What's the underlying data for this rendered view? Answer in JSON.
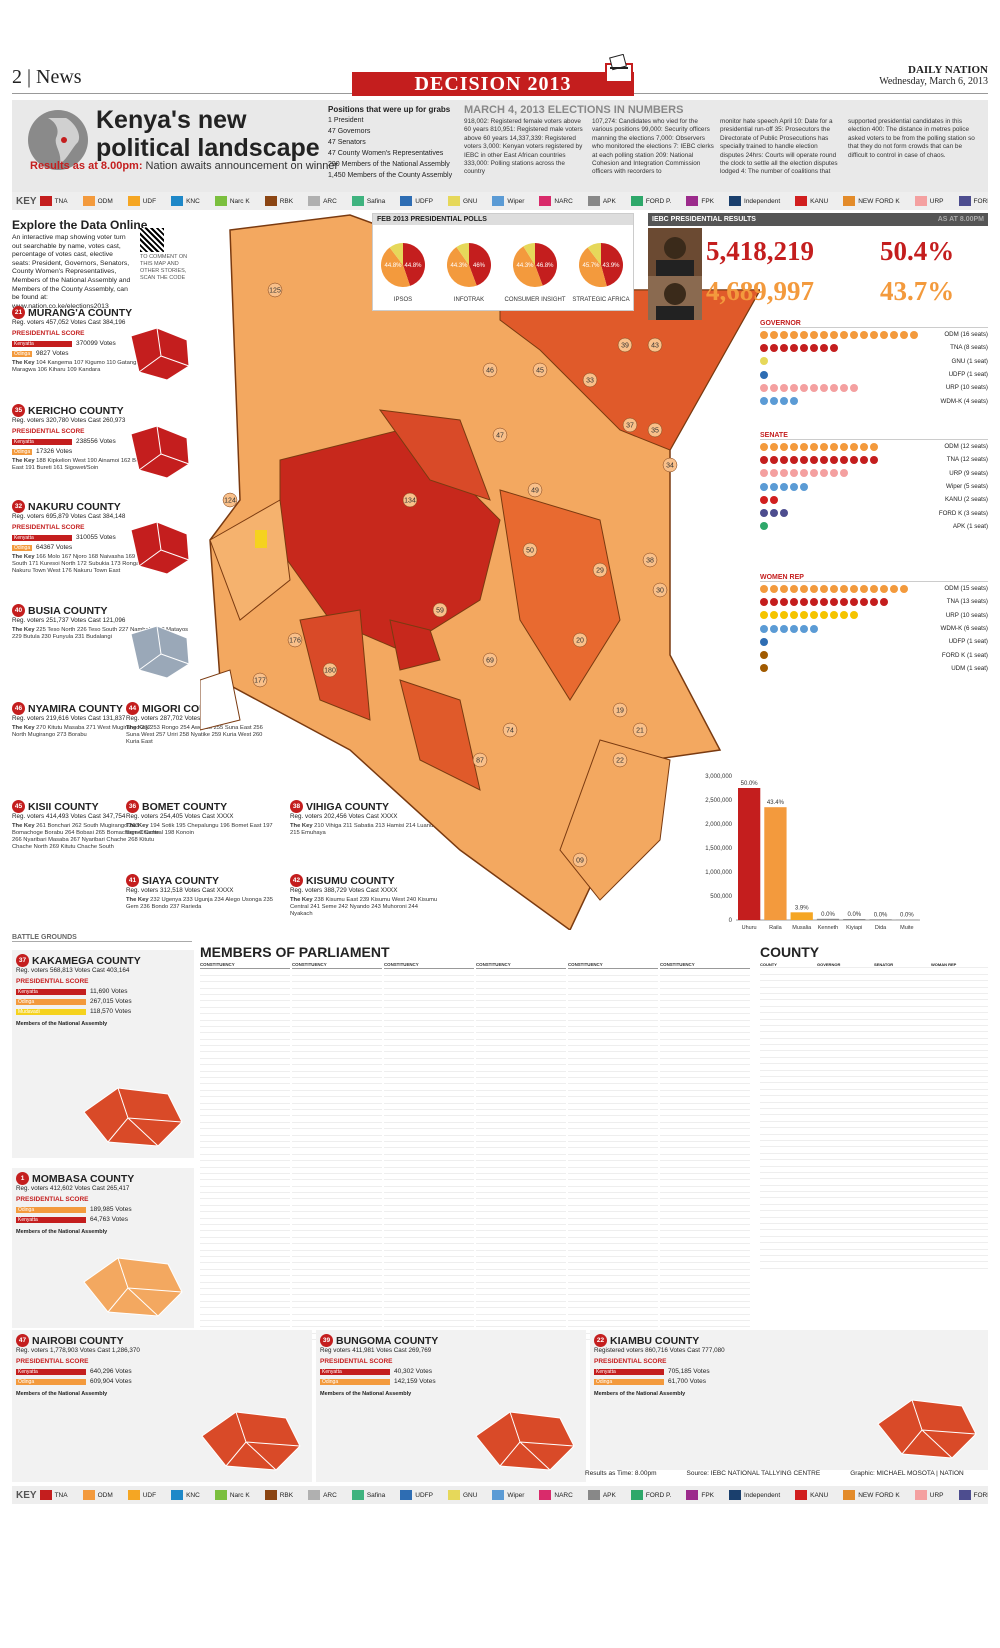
{
  "header": {
    "page": "2 | News",
    "banner": "DECISION 2013",
    "paper": "DAILY NATION",
    "date": "Wednesday, March 6, 2013"
  },
  "title": {
    "main": "Kenya's new political landscape",
    "results_lead": "Results as at 8.00pm:",
    "results_rest": " Nation awaits announcement on winner"
  },
  "positions": {
    "heading": "Positions that were up for grabs",
    "items": [
      "1 President",
      "47 Governors",
      "47 Senators",
      "47 County Women's Representatives",
      "290 Members of the National Assembly",
      "1,450 Members of the County Assembly"
    ]
  },
  "numbers": {
    "heading": "MARCH 4, 2013 ELECTIONS IN NUMBERS",
    "col1": "918,002: Registered female voters above 60 years 810,951: Registered male voters above 60 years 14,337,339: Registered voters 3,000: Kenyan voters registered by IEBC in other East African countries 333,000: Polling stations across the country",
    "col2": "107,274: Candidates who vied for the various positions 99,000: Security officers manning the elections 7,000: Observers who monitored the elections 7: IEBC clerks at each polling station 209: National Cohesion and Integration Commission officers with recorders to",
    "col3": "monitor hate speech April 10: Date for a presidential run-off 35: Prosecutors the Directorate of Public Prosecutions has specially trained to handle election disputes 24hrs: Courts will operate round the clock to settle all the election disputes lodged 4: The number of coalitions that",
    "col4": "supported presidential candidates in this election 400: The distance in metres police asked voters to be from the polling station so that they do not form crowds that can be difficult to control in case of chaos."
  },
  "key": {
    "label": "KEY",
    "parties": [
      {
        "name": "TNA",
        "color": "#c41e1e"
      },
      {
        "name": "ODM",
        "color": "#f39a3d"
      },
      {
        "name": "UDF",
        "color": "#f5a623"
      },
      {
        "name": "KNC",
        "color": "#1e88c8"
      },
      {
        "name": "Narc K",
        "color": "#7bbf3e"
      },
      {
        "name": "RBK",
        "color": "#8b4513"
      },
      {
        "name": "ARC",
        "color": "#b0b0b0"
      },
      {
        "name": "Safina",
        "color": "#3fb37f"
      },
      {
        "name": "UDFP",
        "color": "#2e6db3"
      },
      {
        "name": "GNU",
        "color": "#e6d85a"
      },
      {
        "name": "Wiper",
        "color": "#5b9bd5"
      },
      {
        "name": "NARC",
        "color": "#d92b6b"
      },
      {
        "name": "APK",
        "color": "#888888"
      },
      {
        "name": "FORD P.",
        "color": "#2ea86a"
      },
      {
        "name": "FPK",
        "color": "#9c2b8c"
      },
      {
        "name": "Independent",
        "color": "#1a3f6d"
      },
      {
        "name": "KANU",
        "color": "#d11f1f"
      },
      {
        "name": "NEW FORD K",
        "color": "#e38b2a"
      },
      {
        "name": "URP",
        "color": "#f4a0a0"
      },
      {
        "name": "FORD K",
        "color": "#4d4d8f"
      },
      {
        "name": "UDM",
        "color": "#a05a00"
      }
    ]
  },
  "explore": {
    "title": "Explore the Data Online",
    "text": "An interactive map showing voter turn out searchable by name, votes cast, percentage of votes cast, elective seats: President, Governors, Senators, County Women's Representatives, Members of the National Assembly and Members of the County Assembly, can be found at: www.nation.co.ke/elections2013",
    "qr_caption": "TO COMMENT ON THIS MAP AND OTHER STORIES, SCAN THE CODE"
  },
  "counties_left": [
    {
      "num": "21",
      "name": "MURANG'A COUNTY",
      "meta": "Reg. voters 457,052  Votes Cast 384,196",
      "ps": "PRESIDENTIAL SCORE",
      "a": "Kenyatta",
      "av": "370099 Votes",
      "b": "Odinga",
      "bv": "9827 Votes",
      "keyh": "The Key",
      "keys": "104 Kangema 107 Kigumo 110 Gatanga 105 Mathioya 108 Maragwa 106 Kiharu 109 Kandara"
    },
    {
      "num": "35",
      "name": "KERICHO COUNTY",
      "meta": "Reg. voters 320,780  Votes Cast 260,973",
      "ps": "PRESIDENTIAL SCORE",
      "a": "Kenyatta",
      "av": "238556 Votes",
      "b": "Odinga",
      "bv": "17326 Votes",
      "keyh": "The Key",
      "keys": "188 Kipkelion West 190 Ainamoi 162 Belgut 189 Kipkelion East 191 Bureti 161 Sigowet/Soin"
    },
    {
      "num": "32",
      "name": "NAKURU COUNTY",
      "meta": "Reg. voters 695,879  Votes Cast 384,148",
      "ps": "PRESIDENTIAL SCORE",
      "a": "Kenyatta",
      "av": "310055 Votes",
      "b": "Odinga",
      "bv": "64367 Votes",
      "keyh": "The Key",
      "keys": "166 Molo 167 Njoro 168 Naivasha 169 Gilgil 170 Kuresoi South 171 Kuresoi North 172 Subukia 173 Rongai 174 Bahati 175 Nakuru Town West 176 Nakuru Town East"
    },
    {
      "num": "40",
      "name": "BUSIA COUNTY",
      "meta": "Reg. voters 251,737  Votes Cast 121,096",
      "keyh": "The Key",
      "keys": "225 Teso North 226 Teso South 227 Nambale 228 Matayos 229 Butula 230 Funyula 231 Budalangi"
    },
    {
      "num": "46",
      "name": "NYAMIRA COUNTY",
      "meta": "Reg. voters 219,616  Votes Cast 131,837",
      "keyh": "The Key",
      "keys": "270 Kitutu Masaba 271 West Mugirango 272 North Mugirango 273 Borabu"
    },
    {
      "num": "44",
      "name": "MIGORI COUNTY",
      "meta": "Reg. voters 287,702  Votes Cast 157,561",
      "keyh": "The Key",
      "keys": "253 Rongo 254 Awendo 255 Suna East 256 Suna West 257 Uriri 258 Nyatike 259 Kuria West 260 Kuria East"
    },
    {
      "num": "45",
      "name": "KISII COUNTY",
      "meta": "Reg. voters 414,493  Votes Cast 347,754",
      "keyh": "The Key",
      "keys": "261 Bonchari 262 South Mugirango 263 Bomachoge Borabu 264 Bobasi 265 Bomachoge Chache 266 Nyaribari Masaba 267 Nyaribari Chache 268 Kitutu Chache North 269 Kitutu Chache South"
    },
    {
      "num": "36",
      "name": "BOMET COUNTY",
      "meta": "Reg. voters 254,405  Votes Cast XXXX",
      "keyh": "The Key",
      "keys": "194 Sotik 195 Chepalungu 196 Bomet East 197 Bomet Central 198 Konoin"
    },
    {
      "num": "38",
      "name": "VIHIGA COUNTY",
      "meta": "Reg. voters 202,456  Votes Cast XXXX",
      "keyh": "The Key",
      "keys": "210 Vihiga 211 Sabatia 213 Hamisi 214 Luanda 215 Emuhaya"
    },
    {
      "num": "41",
      "name": "SIAYA COUNTY",
      "meta": "Reg. voters 312,518  Votes Cast XXXX",
      "keyh": "The Key",
      "keys": "232 Ugenya 233 Ugunja 234 Alego Usonga 235 Gem 236 Bondo 237 Rarieda"
    },
    {
      "num": "42",
      "name": "KISUMU COUNTY",
      "meta": "Reg. voters 388,729  Votes Cast XXXX",
      "keyh": "The Key",
      "keys": "238 Kisumu East 239 Kisumu West 240 Kisumu Central 241 Seme 242 Nyando 243 Muhoroni 244 Nyakach"
    }
  ],
  "polls": {
    "heading": "FEB 2013 PRESIDENTIAL POLLS",
    "items": [
      {
        "name": "IPSOS",
        "a": 44.8,
        "b": 44.8
      },
      {
        "name": "INFOTRAK",
        "a": 44.3,
        "b": 46.0
      },
      {
        "name": "CONSUMER INSIGHT",
        "a": 44.3,
        "b": 46.8
      },
      {
        "name": "STRATEGIC AFRICA",
        "a": 45.7,
        "b": 43.9
      }
    ]
  },
  "iebc": {
    "heading": "IEBC PRESIDENTIAL RESULTS",
    "asat": "AS AT 8.00PM",
    "a_votes": "5,418,219",
    "a_pct": "50.4%",
    "b_votes": "4,689,997",
    "b_pct": "43.7%"
  },
  "governor": {
    "heading": "GOVERNOR",
    "rows": [
      {
        "label": "ODM (16 seats)",
        "n": 16,
        "color": "#f39a3d"
      },
      {
        "label": "TNA (8 seats)",
        "n": 8,
        "color": "#c41e1e"
      },
      {
        "label": "GNU (1 seat)",
        "n": 1,
        "color": "#e6d85a"
      },
      {
        "label": "UDFP (1 seat)",
        "n": 1,
        "color": "#2e6db3"
      },
      {
        "label": "URP (10 seats)",
        "n": 10,
        "color": "#f4a0a0"
      },
      {
        "label": "WDM-K (4 seats)",
        "n": 4,
        "color": "#5b9bd5"
      }
    ]
  },
  "senate": {
    "heading": "SENATE",
    "rows": [
      {
        "label": "ODM (12 seats)",
        "n": 12,
        "color": "#f39a3d"
      },
      {
        "label": "TNA (12 seats)",
        "n": 12,
        "color": "#c41e1e"
      },
      {
        "label": "URP (9 seats)",
        "n": 9,
        "color": "#f4a0a0"
      },
      {
        "label": "Wiper (5 seats)",
        "n": 5,
        "color": "#5b9bd5"
      },
      {
        "label": "KANU (2 seats)",
        "n": 2,
        "color": "#d11f1f"
      },
      {
        "label": "FORD K (3 seats)",
        "n": 3,
        "color": "#4d4d8f"
      },
      {
        "label": "APK (1 seat)",
        "n": 1,
        "color": "#2ea86a"
      }
    ]
  },
  "womenrep": {
    "heading": "WOMEN REP",
    "rows": [
      {
        "label": "ODM (15 seats)",
        "n": 15,
        "color": "#f39a3d"
      },
      {
        "label": "TNA (13 seats)",
        "n": 13,
        "color": "#c41e1e"
      },
      {
        "label": "URP (10 seats)",
        "n": 10,
        "color": "#f5c400"
      },
      {
        "label": "WDM-K (6 seats)",
        "n": 6,
        "color": "#5b9bd5"
      },
      {
        "label": "UDFP (1 seat)",
        "n": 1,
        "color": "#2e6db3"
      },
      {
        "label": "FORD K (1 seat)",
        "n": 1,
        "color": "#a05a00"
      },
      {
        "label": "UDM (1 seat)",
        "n": 1,
        "color": "#a05a00"
      }
    ]
  },
  "chart_data": {
    "type": "bar",
    "categories": [
      "Uhuru",
      "Raila",
      "Musalia",
      "Kenneth",
      "Kiyiapi",
      "Dida",
      "Muite"
    ],
    "values": [
      2750000,
      2350000,
      160000,
      25000,
      20000,
      15000,
      10000
    ],
    "value_labels": [
      "50.0%",
      "43.4%",
      "3.9%",
      "0.0%",
      "0.0%",
      "0.0%",
      "0.0%"
    ],
    "ylim": [
      0,
      3000000
    ],
    "yticks": [
      "3,000,000",
      "2,500,000",
      "2,000,000",
      "1,500,000",
      "1,000,000",
      "500,000",
      "0"
    ],
    "colors": [
      "#c41e1e",
      "#f39a3d",
      "#f5a623",
      "#888888",
      "#888888",
      "#888888",
      "#888888"
    ]
  },
  "mp": {
    "title": "MEMBERS OF PARLIAMENT",
    "col_h": [
      "CONSTITUENCY",
      "MP"
    ]
  },
  "county": {
    "title": "COUNTY",
    "headers": [
      "COUNTY",
      "GOVERNOR",
      "SENATOR",
      "WOMAN REP"
    ]
  },
  "battle": "BATTLE GROUNDS",
  "bottom": [
    {
      "num": "37",
      "name": "KAKAMEGA COUNTY",
      "meta": "Reg. voters 568,813  Votes Cast 403,164",
      "ps": "PRESIDENTIAL SCORE",
      "rows": [
        [
          "Kenyatta",
          "11,690 Votes"
        ],
        [
          "Odinga",
          "267,015 Votes"
        ],
        [
          "Mudavadi",
          "118,570 Votes"
        ]
      ],
      "mna": "Members of the National Assembly"
    },
    {
      "num": "1",
      "name": "MOMBASA COUNTY",
      "meta": "Reg. voters 412,602  Votes Cast 265,417",
      "ps": "PRESIDENTIAL SCORE",
      "rows": [
        [
          "Odinga",
          "189,985 Votes"
        ],
        [
          "Kenyatta",
          "64,763 Votes"
        ]
      ],
      "mna": "Members of the National Assembly"
    },
    {
      "num": "47",
      "name": "NAIROBI COUNTY",
      "meta": "Reg. voters 1,778,903   Votes Cast 1,286,370",
      "ps": "PRESIDENTIAL SCORE",
      "rows": [
        [
          "Kenyatta",
          "640,296 Votes"
        ],
        [
          "Odinga",
          "609,904 Votes"
        ]
      ],
      "mna": "Members of the National Assembly"
    },
    {
      "num": "39",
      "name": "BUNGOMA COUNTY",
      "meta": "Reg voters 411,981  Votes Cast 269,769",
      "ps": "PRESIDENTIAL SCORE",
      "rows": [
        [
          "Kenyatta",
          "40,302 Votes"
        ],
        [
          "Odinga",
          "142,159 Votes"
        ]
      ],
      "mna": "Members of the National Assembly"
    },
    {
      "num": "22",
      "name": "KIAMBU COUNTY",
      "meta": "Registered voters 860,716  Votes Cast 777,080",
      "ps": "PRESIDENTIAL SCORE",
      "rows": [
        [
          "Kenyatta",
          "705,185 Votes"
        ],
        [
          "Odinga",
          "61,700 Votes"
        ]
      ],
      "mna": "Members of the National Assembly"
    }
  ],
  "footer": {
    "time": "Results as Time: 8.00pm",
    "source": "Source: IEBC NATIONAL TALLYING CENTRE",
    "graphic": "Graphic: MICHAEL MOSOTA | NATION"
  }
}
